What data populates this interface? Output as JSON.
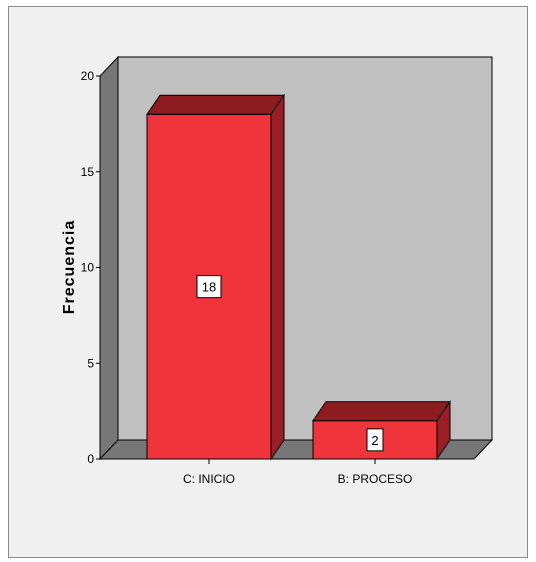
{
  "chart_data": {
    "type": "bar",
    "categories": [
      "C: INICIO",
      "B: PROCESO"
    ],
    "values": [
      18,
      2
    ],
    "data_labels": [
      "18",
      "2"
    ],
    "ylabel": "Frecuencia",
    "xlabel": "",
    "ylim": [
      0,
      20
    ],
    "yticks": [
      "0",
      "5",
      "10",
      "15",
      "20"
    ],
    "three_d": true,
    "grid": false,
    "colors": {
      "bar_front": "#f0343c",
      "bar_top": "#8c1c20",
      "bar_side": "#9a1f24",
      "wall": "#c0c0c0",
      "floor": "#777777",
      "outline": "#000000"
    }
  }
}
